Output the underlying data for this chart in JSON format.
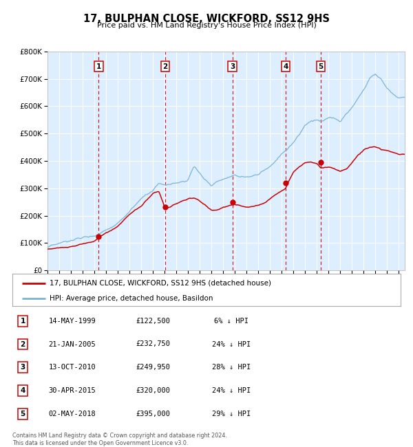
{
  "title": "17, BULPHAN CLOSE, WICKFORD, SS12 9HS",
  "subtitle": "Price paid vs. HM Land Registry's House Price Index (HPI)",
  "footer": "Contains HM Land Registry data © Crown copyright and database right 2024.\nThis data is licensed under the Open Government Licence v3.0.",
  "legend_line1": "17, BULPHAN CLOSE, WICKFORD, SS12 9HS (detached house)",
  "legend_line2": "HPI: Average price, detached house, Basildon",
  "sales": [
    {
      "num": 1,
      "date": "14-MAY-1999",
      "year": 1999.37,
      "price": 122500,
      "pct": "6% ↓ HPI"
    },
    {
      "num": 2,
      "date": "21-JAN-2005",
      "year": 2005.05,
      "price": 232750,
      "pct": "24% ↓ HPI"
    },
    {
      "num": 3,
      "date": "13-OCT-2010",
      "year": 2010.78,
      "price": 249950,
      "pct": "28% ↓ HPI"
    },
    {
      "num": 4,
      "date": "30-APR-2015",
      "year": 2015.33,
      "price": 320000,
      "pct": "24% ↓ HPI"
    },
    {
      "num": 5,
      "date": "02-MAY-2018",
      "year": 2018.33,
      "price": 395000,
      "pct": "29% ↓ HPI"
    }
  ],
  "hpi_color": "#7ab4d8",
  "price_color": "#cc0000",
  "vline_color": "#cc0000",
  "bg_color": "#ddeeff",
  "grid_color": "#ffffff",
  "ylim": [
    0,
    800000
  ],
  "xlim_start": 1995,
  "xlim_end": 2025.5,
  "yticks": [
    0,
    100000,
    200000,
    300000,
    400000,
    500000,
    600000,
    700000,
    800000
  ],
  "hpi_anchors": {
    "1995.0": 85000,
    "1996.0": 90000,
    "1997.0": 98000,
    "1998.0": 108000,
    "1999.0": 118000,
    "2000.0": 145000,
    "2001.0": 175000,
    "2002.0": 220000,
    "2003.0": 260000,
    "2004.0": 285000,
    "2004.5": 305000,
    "2005.0": 295000,
    "2006.0": 300000,
    "2007.0": 310000,
    "2007.5": 360000,
    "2008.5": 310000,
    "2009.0": 290000,
    "2009.5": 305000,
    "2010.0": 315000,
    "2010.5": 330000,
    "2011.0": 340000,
    "2011.5": 330000,
    "2012.0": 325000,
    "2013.0": 335000,
    "2014.0": 365000,
    "2014.5": 390000,
    "2015.0": 415000,
    "2015.5": 435000,
    "2016.0": 460000,
    "2016.5": 490000,
    "2017.0": 530000,
    "2017.5": 545000,
    "2018.0": 550000,
    "2018.5": 545000,
    "2019.0": 555000,
    "2019.5": 550000,
    "2020.0": 535000,
    "2020.5": 565000,
    "2021.0": 590000,
    "2021.5": 625000,
    "2022.0": 660000,
    "2022.5": 700000,
    "2023.0": 720000,
    "2023.5": 700000,
    "2024.0": 670000,
    "2024.5": 650000,
    "2025.0": 640000
  },
  "price_anchors": {
    "1995.0": 78000,
    "1996.0": 84000,
    "1997.0": 92000,
    "1998.0": 102000,
    "1999.0": 112000,
    "1999.37": 122500,
    "2000.0": 140000,
    "2001.0": 165000,
    "2002.0": 210000,
    "2003.0": 240000,
    "2004.0": 290000,
    "2004.5": 295000,
    "2005.05": 232750,
    "2005.5": 238000,
    "2006.0": 248000,
    "2006.5": 258000,
    "2007.0": 268000,
    "2007.5": 272000,
    "2008.0": 260000,
    "2008.5": 245000,
    "2009.0": 228000,
    "2009.5": 230000,
    "2010.0": 240000,
    "2010.78": 249950,
    "2011.0": 252000,
    "2011.5": 248000,
    "2012.0": 242000,
    "2012.5": 245000,
    "2013.0": 252000,
    "2013.5": 260000,
    "2014.0": 278000,
    "2014.5": 295000,
    "2015.33": 320000,
    "2015.5": 340000,
    "2016.0": 380000,
    "2016.5": 400000,
    "2017.0": 415000,
    "2017.5": 418000,
    "2018.0": 410000,
    "2018.33": 395000,
    "2018.5": 395000,
    "2019.0": 398000,
    "2019.5": 393000,
    "2020.0": 385000,
    "2020.5": 395000,
    "2021.0": 420000,
    "2021.5": 445000,
    "2022.0": 465000,
    "2022.5": 475000,
    "2023.0": 478000,
    "2023.3": 473000,
    "2023.5": 465000,
    "2024.0": 462000,
    "2024.5": 455000,
    "2025.0": 450000
  }
}
